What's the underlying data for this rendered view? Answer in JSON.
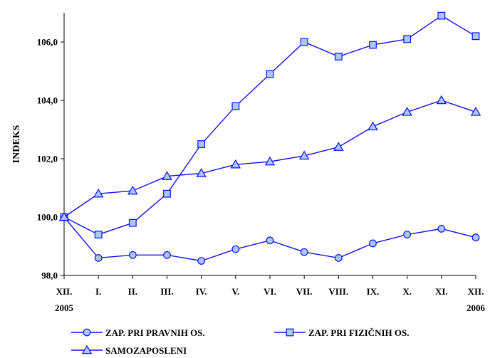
{
  "chart_data": {
    "type": "line",
    "title": "",
    "xlabel": "",
    "ylabel": "INDEKS",
    "categories": [
      "XII.",
      "I.",
      "II.",
      "III.",
      "IV.",
      "V.",
      "VI.",
      "VII.",
      "VIII.",
      "IX.",
      "X.",
      "XI.",
      "XII."
    ],
    "year_labels": {
      "first": "2005",
      "last": "2006"
    },
    "ylim": [
      98.0,
      107.0
    ],
    "yticks": [
      "98,0",
      "100,0",
      "102,0",
      "104,0",
      "106,0"
    ],
    "ytick_values": [
      98,
      100,
      102,
      104,
      106
    ],
    "grid": false,
    "legend_position": "bottom",
    "series": [
      {
        "name": "ZAP. PRI PRAVNIH OS.",
        "marker": "circle",
        "values": [
          100.0,
          98.6,
          98.7,
          98.7,
          98.5,
          98.9,
          99.2,
          98.8,
          98.6,
          99.1,
          99.4,
          99.6,
          99.3
        ]
      },
      {
        "name": "ZAP. PRI FIZIČNIH OS.",
        "marker": "square",
        "values": [
          100.0,
          99.4,
          99.8,
          100.8,
          102.5,
          103.8,
          104.9,
          106.0,
          105.5,
          105.9,
          106.1,
          106.9,
          106.2
        ]
      },
      {
        "name": "SAMOZAPOSLENI",
        "marker": "triangle",
        "values": [
          100.0,
          100.8,
          100.9,
          101.4,
          101.5,
          101.8,
          101.9,
          102.1,
          102.4,
          103.1,
          103.6,
          104.0,
          103.6
        ]
      }
    ],
    "colors": {
      "line": "#1111ee",
      "marker_fill": "#a8c8ff",
      "axis": "#000000"
    }
  }
}
